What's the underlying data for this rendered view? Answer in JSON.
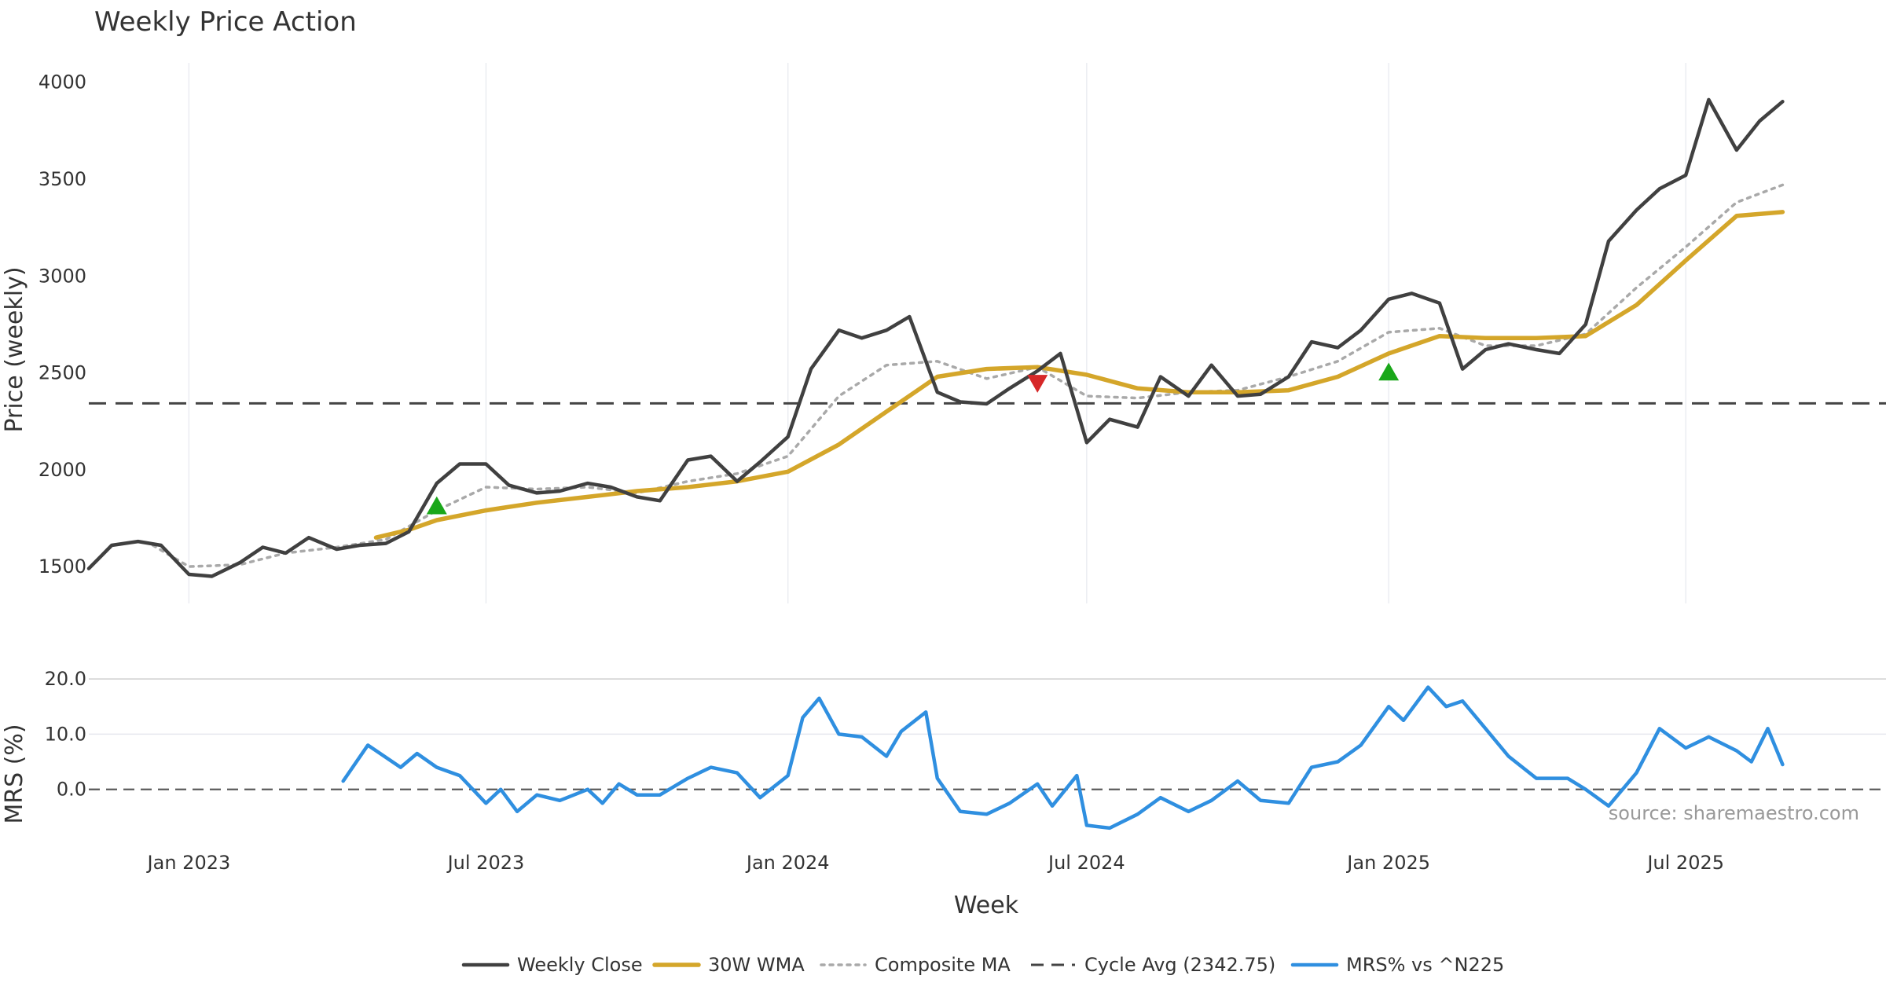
{
  "chart_data": {
    "type": "line",
    "title": "Weekly Price Action",
    "source_note": "source: sharemaestro.com",
    "xlabel": "Week",
    "x_ticks": [
      "Jan 2023",
      "Jul 2023",
      "Jan 2024",
      "Jul 2024",
      "Jan 2025",
      "Jul 2025"
    ],
    "x_tick_dates": [
      "2023-01-01",
      "2023-07-01",
      "2024-01-01",
      "2024-07-01",
      "2025-01-01",
      "2025-07-01"
    ],
    "x_range": [
      "2022-11-01",
      "2025-10-31"
    ],
    "panels": {
      "price": {
        "ylabel": "Price (weekly)",
        "ylim": [
          1310,
          4100
        ],
        "y_ticks": [
          1500,
          2000,
          2500,
          3000,
          3500,
          4000
        ],
        "grid": true
      },
      "mrs": {
        "ylabel": "MRS (%)",
        "ylim": [
          -10,
          22
        ],
        "y_ticks": [
          0.0,
          10.0,
          20.0
        ],
        "y_tick_labels": [
          "0.0",
          "10.0",
          "20.0"
        ],
        "zero_line": 0
      }
    },
    "legend_position": "bottom-center",
    "series": [
      {
        "name": "Weekly Close",
        "panel": "price",
        "color": "#404040",
        "style": "solid",
        "points": [
          [
            "2022-11-01",
            1490
          ],
          [
            "2022-11-15",
            1610
          ],
          [
            "2022-12-01",
            1630
          ],
          [
            "2022-12-15",
            1610
          ],
          [
            "2023-01-01",
            1460
          ],
          [
            "2023-01-15",
            1450
          ],
          [
            "2023-02-01",
            1520
          ],
          [
            "2023-02-15",
            1600
          ],
          [
            "2023-03-01",
            1570
          ],
          [
            "2023-03-15",
            1650
          ],
          [
            "2023-04-01",
            1590
          ],
          [
            "2023-04-15",
            1610
          ],
          [
            "2023-05-01",
            1620
          ],
          [
            "2023-05-15",
            1680
          ],
          [
            "2023-06-01",
            1930
          ],
          [
            "2023-06-15",
            2030
          ],
          [
            "2023-07-01",
            2030
          ],
          [
            "2023-07-15",
            1920
          ],
          [
            "2023-08-01",
            1880
          ],
          [
            "2023-08-15",
            1890
          ],
          [
            "2023-09-01",
            1930
          ],
          [
            "2023-09-15",
            1910
          ],
          [
            "2023-10-01",
            1860
          ],
          [
            "2023-10-15",
            1840
          ],
          [
            "2023-11-01",
            2050
          ],
          [
            "2023-11-15",
            2070
          ],
          [
            "2023-12-01",
            1940
          ],
          [
            "2023-12-15",
            2040
          ],
          [
            "2024-01-01",
            2170
          ],
          [
            "2024-01-15",
            2520
          ],
          [
            "2024-02-01",
            2720
          ],
          [
            "2024-02-15",
            2680
          ],
          [
            "2024-03-01",
            2720
          ],
          [
            "2024-03-15",
            2790
          ],
          [
            "2024-04-01",
            2400
          ],
          [
            "2024-04-15",
            2350
          ],
          [
            "2024-05-01",
            2340
          ],
          [
            "2024-05-15",
            2420
          ],
          [
            "2024-06-01",
            2510
          ],
          [
            "2024-06-15",
            2600
          ],
          [
            "2024-07-01",
            2140
          ],
          [
            "2024-07-15",
            2260
          ],
          [
            "2024-08-01",
            2220
          ],
          [
            "2024-08-15",
            2480
          ],
          [
            "2024-09-01",
            2380
          ],
          [
            "2024-09-15",
            2540
          ],
          [
            "2024-10-01",
            2380
          ],
          [
            "2024-10-15",
            2390
          ],
          [
            "2024-11-01",
            2480
          ],
          [
            "2024-11-15",
            2660
          ],
          [
            "2024-12-01",
            2630
          ],
          [
            "2024-12-15",
            2720
          ],
          [
            "2025-01-01",
            2880
          ],
          [
            "2025-01-15",
            2910
          ],
          [
            "2025-02-01",
            2860
          ],
          [
            "2025-02-15",
            2520
          ],
          [
            "2025-03-01",
            2620
          ],
          [
            "2025-03-15",
            2650
          ],
          [
            "2025-04-01",
            2620
          ],
          [
            "2025-04-15",
            2600
          ],
          [
            "2025-05-01",
            2750
          ],
          [
            "2025-05-15",
            3180
          ],
          [
            "2025-06-01",
            3340
          ],
          [
            "2025-06-15",
            3450
          ],
          [
            "2025-07-01",
            3520
          ],
          [
            "2025-07-15",
            3910
          ],
          [
            "2025-08-01",
            3650
          ],
          [
            "2025-08-15",
            3800
          ],
          [
            "2025-08-29",
            3900
          ]
        ]
      },
      {
        "name": "30W WMA",
        "panel": "price",
        "color": "#d4a62a",
        "style": "solid",
        "points": [
          [
            "2023-04-25",
            1650
          ],
          [
            "2023-05-15",
            1690
          ],
          [
            "2023-06-01",
            1740
          ],
          [
            "2023-07-01",
            1790
          ],
          [
            "2023-08-01",
            1830
          ],
          [
            "2023-09-01",
            1860
          ],
          [
            "2023-10-01",
            1890
          ],
          [
            "2023-11-01",
            1910
          ],
          [
            "2023-12-01",
            1940
          ],
          [
            "2024-01-01",
            1990
          ],
          [
            "2024-02-01",
            2130
          ],
          [
            "2024-03-01",
            2300
          ],
          [
            "2024-04-01",
            2480
          ],
          [
            "2024-05-01",
            2520
          ],
          [
            "2024-06-01",
            2530
          ],
          [
            "2024-07-01",
            2490
          ],
          [
            "2024-08-01",
            2420
          ],
          [
            "2024-09-01",
            2400
          ],
          [
            "2024-10-01",
            2400
          ],
          [
            "2024-11-01",
            2410
          ],
          [
            "2024-12-01",
            2480
          ],
          [
            "2025-01-01",
            2600
          ],
          [
            "2025-02-01",
            2690
          ],
          [
            "2025-03-01",
            2680
          ],
          [
            "2025-04-01",
            2680
          ],
          [
            "2025-05-01",
            2690
          ],
          [
            "2025-06-01",
            2850
          ],
          [
            "2025-07-01",
            3080
          ],
          [
            "2025-08-01",
            3310
          ],
          [
            "2025-08-29",
            3330
          ]
        ]
      },
      {
        "name": "Composite MA",
        "panel": "price",
        "color": "#a9a9a9",
        "style": "dotted",
        "points": [
          [
            "2022-12-10",
            1610
          ],
          [
            "2023-01-01",
            1500
          ],
          [
            "2023-02-01",
            1510
          ],
          [
            "2023-03-01",
            1570
          ],
          [
            "2023-04-01",
            1600
          ],
          [
            "2023-05-01",
            1640
          ],
          [
            "2023-06-01",
            1790
          ],
          [
            "2023-07-01",
            1910
          ],
          [
            "2023-08-01",
            1900
          ],
          [
            "2023-09-01",
            1910
          ],
          [
            "2023-10-01",
            1880
          ],
          [
            "2023-11-01",
            1940
          ],
          [
            "2023-12-01",
            1980
          ],
          [
            "2024-01-01",
            2070
          ],
          [
            "2024-02-01",
            2380
          ],
          [
            "2024-03-01",
            2540
          ],
          [
            "2024-04-01",
            2560
          ],
          [
            "2024-05-01",
            2470
          ],
          [
            "2024-06-01",
            2530
          ],
          [
            "2024-07-01",
            2380
          ],
          [
            "2024-08-01",
            2370
          ],
          [
            "2024-09-01",
            2400
          ],
          [
            "2024-10-01",
            2410
          ],
          [
            "2024-11-01",
            2480
          ],
          [
            "2024-12-01",
            2560
          ],
          [
            "2025-01-01",
            2710
          ],
          [
            "2025-02-01",
            2730
          ],
          [
            "2025-03-01",
            2640
          ],
          [
            "2025-04-01",
            2640
          ],
          [
            "2025-05-01",
            2700
          ],
          [
            "2025-06-01",
            2940
          ],
          [
            "2025-07-01",
            3150
          ],
          [
            "2025-08-01",
            3380
          ],
          [
            "2025-08-29",
            3470
          ]
        ]
      },
      {
        "name": "Cycle Avg (2342.75)",
        "panel": "price",
        "color": "#444444",
        "style": "dashed",
        "constant": 2342.75
      },
      {
        "name": "MRS% vs ^N225",
        "panel": "mrs",
        "color": "#2f8fe0",
        "style": "solid",
        "points": [
          [
            "2023-04-05",
            1.5
          ],
          [
            "2023-04-20",
            8.0
          ],
          [
            "2023-05-10",
            4.0
          ],
          [
            "2023-05-20",
            6.5
          ],
          [
            "2023-06-01",
            4.0
          ],
          [
            "2023-06-15",
            2.5
          ],
          [
            "2023-07-01",
            -2.5
          ],
          [
            "2023-07-10",
            0.0
          ],
          [
            "2023-07-20",
            -4.0
          ],
          [
            "2023-08-01",
            -1.0
          ],
          [
            "2023-08-15",
            -2.0
          ],
          [
            "2023-09-01",
            0.0
          ],
          [
            "2023-09-10",
            -2.5
          ],
          [
            "2023-09-20",
            1.0
          ],
          [
            "2023-10-01",
            -1.0
          ],
          [
            "2023-10-15",
            -1.0
          ],
          [
            "2023-11-01",
            2.0
          ],
          [
            "2023-11-15",
            4.0
          ],
          [
            "2023-12-01",
            3.0
          ],
          [
            "2023-12-15",
            -1.5
          ],
          [
            "2024-01-01",
            2.5
          ],
          [
            "2024-01-10",
            13.0
          ],
          [
            "2024-01-20",
            16.5
          ],
          [
            "2024-02-01",
            10.0
          ],
          [
            "2024-02-15",
            9.5
          ],
          [
            "2024-03-01",
            6.0
          ],
          [
            "2024-03-10",
            10.5
          ],
          [
            "2024-03-25",
            14.0
          ],
          [
            "2024-04-01",
            2.0
          ],
          [
            "2024-04-15",
            -4.0
          ],
          [
            "2024-05-01",
            -4.5
          ],
          [
            "2024-05-15",
            -2.5
          ],
          [
            "2024-06-01",
            1.0
          ],
          [
            "2024-06-10",
            -3.0
          ],
          [
            "2024-06-25",
            2.5
          ],
          [
            "2024-07-01",
            -6.5
          ],
          [
            "2024-07-15",
            -7.0
          ],
          [
            "2024-08-01",
            -4.5
          ],
          [
            "2024-08-15",
            -1.5
          ],
          [
            "2024-09-01",
            -4.0
          ],
          [
            "2024-09-15",
            -2.0
          ],
          [
            "2024-10-01",
            1.5
          ],
          [
            "2024-10-15",
            -2.0
          ],
          [
            "2024-11-01",
            -2.5
          ],
          [
            "2024-11-15",
            4.0
          ],
          [
            "2024-12-01",
            5.0
          ],
          [
            "2024-12-15",
            8.0
          ],
          [
            "2025-01-01",
            15.0
          ],
          [
            "2025-01-10",
            12.5
          ],
          [
            "2025-01-25",
            18.5
          ],
          [
            "2025-02-05",
            15.0
          ],
          [
            "2025-02-15",
            16.0
          ],
          [
            "2025-03-01",
            11.0
          ],
          [
            "2025-03-15",
            6.0
          ],
          [
            "2025-04-01",
            2.0
          ],
          [
            "2025-04-20",
            2.0
          ],
          [
            "2025-05-01",
            0.0
          ],
          [
            "2025-05-15",
            -3.0
          ],
          [
            "2025-06-01",
            3.0
          ],
          [
            "2025-06-15",
            11.0
          ],
          [
            "2025-07-01",
            7.5
          ],
          [
            "2025-07-15",
            9.5
          ],
          [
            "2025-08-01",
            7.0
          ],
          [
            "2025-08-10",
            5.0
          ],
          [
            "2025-08-20",
            11.0
          ],
          [
            "2025-08-29",
            4.5
          ]
        ]
      }
    ],
    "markers": [
      {
        "type": "buy",
        "shape": "triangle-up",
        "color": "#1aa71a",
        "date": "2023-06-01",
        "value": 1810
      },
      {
        "type": "sell",
        "shape": "triangle-down",
        "color": "#d62728",
        "date": "2024-06-01",
        "value": 2450
      },
      {
        "type": "buy",
        "shape": "triangle-up",
        "color": "#1aa71a",
        "date": "2025-01-01",
        "value": 2500
      }
    ]
  }
}
